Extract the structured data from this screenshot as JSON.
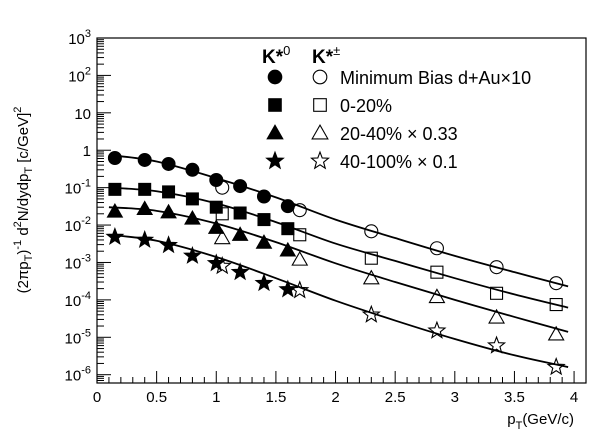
{
  "chart_data": {
    "type": "scatter",
    "title": "",
    "xlabel": {
      "main": "p",
      "sub": "T",
      "rest": "(GeV/c)"
    },
    "ylabel": "(2πp_T)^-1 d^2N/dydp_T [c/GeV]^2",
    "x_scale": "linear",
    "y_scale": "log",
    "xlim": [
      0,
      4.1
    ],
    "ylim": [
      6e-07,
      1000
    ],
    "x_ticks": [
      "0",
      "0.5",
      "1",
      "1.5",
      "2",
      "2.5",
      "3",
      "3.5",
      "4"
    ],
    "y_ticks": [
      {
        "base": "10",
        "exp": "3"
      },
      {
        "base": "10",
        "exp": "2"
      },
      {
        "base": "10",
        "exp": ""
      },
      {
        "base": "1",
        "exp": ""
      },
      {
        "base": "10",
        "exp": "-1"
      },
      {
        "base": "10",
        "exp": "-2"
      },
      {
        "base": "10",
        "exp": "-3"
      },
      {
        "base": "10",
        "exp": "-4"
      },
      {
        "base": "10",
        "exp": "-5"
      },
      {
        "base": "10",
        "exp": "-6"
      }
    ],
    "legend_position": "top-right",
    "legend_header": {
      "k0": "K*0",
      "kpm": "K*±"
    },
    "series": [
      {
        "name": "Minimum Bias d+Au×10",
        "marker": "circle",
        "filled": {
          "x": [
            0.15,
            0.4,
            0.6,
            0.8,
            1.0,
            1.2,
            1.4,
            1.6
          ],
          "y": [
            0.62,
            0.55,
            0.43,
            0.3,
            0.16,
            0.11,
            0.058,
            0.032
          ]
        },
        "open": {
          "x": [
            1.05,
            1.7,
            2.3,
            2.85,
            3.35,
            3.85
          ],
          "y": [
            0.1,
            0.025,
            0.0068,
            0.0024,
            0.00075,
            0.00028
          ]
        },
        "fit": {
          "x": [
            0.1,
            0.5,
            1.0,
            1.5,
            2.0,
            2.5,
            3.0,
            3.5,
            3.95
          ],
          "y": [
            0.75,
            0.5,
            0.18,
            0.055,
            0.014,
            0.0045,
            0.0015,
            0.00055,
            0.00023
          ]
        }
      },
      {
        "name": "0-20%",
        "marker": "square",
        "filled": {
          "x": [
            0.15,
            0.4,
            0.6,
            0.8,
            1.0,
            1.2,
            1.4,
            1.6
          ],
          "y": [
            0.09,
            0.09,
            0.077,
            0.05,
            0.03,
            0.021,
            0.014,
            0.008
          ]
        },
        "open": {
          "x": [
            1.05,
            1.7,
            2.3,
            2.85,
            3.35,
            3.85
          ],
          "y": [
            0.02,
            0.0055,
            0.0013,
            0.00055,
            0.00015,
            7.5e-05
          ]
        },
        "fit": {
          "x": [
            0.1,
            0.5,
            1.0,
            1.5,
            2.0,
            2.5,
            3.0,
            3.5,
            3.95
          ],
          "y": [
            0.1,
            0.08,
            0.038,
            0.012,
            0.0032,
            0.0011,
            0.00038,
            0.00014,
            6.2e-05
          ]
        }
      },
      {
        "name": "20-40% × 0.33",
        "marker": "triangle",
        "filled": {
          "x": [
            0.15,
            0.4,
            0.6,
            0.8,
            1.0,
            1.2,
            1.4,
            1.6
          ],
          "y": [
            0.023,
            0.027,
            0.022,
            0.015,
            0.0085,
            0.0055,
            0.0034,
            0.0021
          ]
        },
        "open": {
          "x": [
            1.05,
            1.7,
            2.3,
            2.85,
            3.35,
            3.85
          ],
          "y": [
            0.0045,
            0.0012,
            0.00038,
            0.00012,
            3.4e-05,
            1.2e-05
          ]
        },
        "fit": {
          "x": [
            0.1,
            0.5,
            1.0,
            1.5,
            2.0,
            2.5,
            3.0,
            3.5,
            3.95
          ],
          "y": [
            0.03,
            0.024,
            0.011,
            0.0035,
            0.00095,
            0.0003,
            0.0001,
            3.5e-05,
            1.4e-05
          ]
        }
      },
      {
        "name": "40-100% × 0.1",
        "marker": "star",
        "filled": {
          "x": [
            0.15,
            0.4,
            0.6,
            0.8,
            1.0,
            1.2,
            1.4,
            1.6
          ],
          "y": [
            0.0048,
            0.004,
            0.0029,
            0.0015,
            0.00095,
            0.00055,
            0.00028,
            0.00019
          ]
        },
        "open": {
          "x": [
            1.05,
            1.7,
            2.3,
            2.85,
            3.35,
            3.85
          ],
          "y": [
            0.0008,
            0.00018,
            4e-05,
            1.5e-05,
            6e-06,
            1.6e-06
          ]
        },
        "fit": {
          "x": [
            0.1,
            0.5,
            1.0,
            1.5,
            2.0,
            2.5,
            3.0,
            3.5,
            3.95
          ],
          "y": [
            0.0055,
            0.0038,
            0.0014,
            0.00038,
            9.5e-05,
            2.8e-05,
            9e-06,
            3.3e-06,
            1.6e-06
          ]
        }
      }
    ]
  }
}
